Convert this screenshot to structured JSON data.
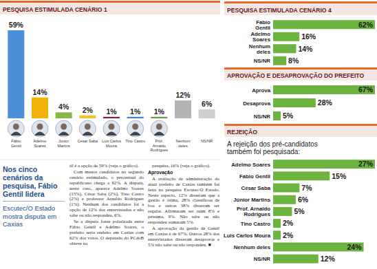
{
  "chart_data": [
    {
      "type": "bar",
      "title": "PESQUISA ESTIMULADA CENÁRIO 1",
      "categories": [
        "Fábio Gentil",
        "Adelmo Soares",
        "Júnior Martins",
        "César Saba",
        "Luis Carlos Moura",
        "Tino Castro",
        "Prof. Arnaldo Rodrigues",
        "Nenhum deles",
        "NS/NR"
      ],
      "values": [
        59,
        14,
        4,
        2,
        1,
        1,
        1,
        12,
        6
      ],
      "value_labels": [
        "59%",
        "14%",
        "4%",
        "2%",
        "1%",
        "1%",
        "1%",
        "12%",
        "6%"
      ],
      "colors": [
        "#4a8fd8",
        "#f2b10a",
        "#86b84a",
        "#f0c52a",
        "#7d2030",
        "#3d7fcf",
        "#5da233",
        "#b4b4b4",
        "#cfcfcf"
      ],
      "ylim": [
        0,
        59
      ],
      "data_labels": true,
      "tick_labels": "x"
    },
    {
      "type": "bar",
      "orientation": "horizontal",
      "title": "PESQUISA ESTIMULADA CENÁRIO 4",
      "categories": [
        "Fábio Gentil",
        "Adelmo Soares",
        "Nenhum deles",
        "NS/NR"
      ],
      "values": [
        62,
        16,
        14,
        8
      ],
      "value_labels": [
        "62%",
        "16%",
        "14%",
        "8%"
      ],
      "color": "#6cb33f",
      "xlim": [
        0,
        62
      ],
      "data_labels": true,
      "tick_labels": "y"
    },
    {
      "type": "bar",
      "orientation": "horizontal",
      "title": "APROVAÇÃO E DESAPROVAÇÃO DO PREFEITO",
      "categories": [
        "Aprova",
        "Desaprova",
        "NS/NR"
      ],
      "values": [
        67,
        28,
        5
      ],
      "value_labels": [
        "67%",
        "28%",
        "5%"
      ],
      "color": "#6cb33f",
      "xlim": [
        0,
        67
      ],
      "data_labels": true,
      "tick_labels": "y"
    },
    {
      "type": "bar",
      "orientation": "horizontal",
      "title": "REJEIÇÃO",
      "subtitle": "A rejeição dos pré-candidatos também foi pesquisada:",
      "categories": [
        "Adelmo Soares",
        "Fábio Gentil",
        "César Saba",
        "Júnior Martins",
        "Prof. Arnaldo Rodrigues",
        "Tino Castro",
        "Luis Carlos Moura",
        "Nenhum deles",
        "NS/NR"
      ],
      "values": [
        27,
        15,
        7,
        6,
        5,
        2,
        2,
        24,
        12
      ],
      "value_labels": [
        "27%",
        "15%",
        "7%",
        "6%",
        "5%",
        "2%",
        "2%",
        "24%",
        "12%"
      ],
      "color": "#6cb33f",
      "xlim": [
        0,
        27
      ],
      "data_labels": true,
      "tick_labels": "y"
    }
  ],
  "article": {
    "headline": "Nos cinco cenários da pesquisa, Fábio Gentil lidera",
    "subheadline": "Escutec/O Estado mostra disputa em Caxias",
    "columns": [
      {
        "paragraphs_before": [
          "til é a opção de 59% (veja o gráfico).",
          "Com menos candidatos no segundo cenário estimulado, o percentual do republicano chega a 62%. A disputa, neste caso, aparece Adelmo Soares (15%), César Saba (2%), Tino Castro (2%) e professor Arnaldo Rodrigues (1%). Nenhum dos candidatos foi a opção de 12% dos entrevistados e não sabe ou não respondeu, 6%.",
          "Se a disputa fosse polarizada entre Fábio Gentil e Adelmo Soares, o prefeito seria reeleito em Caxias com 62% dos votos. O deputado do PCdoB obteve na"
        ],
        "heading": null,
        "paragraphs_after": []
      },
      {
        "paragraphs_before": [
          "pesquisa, 16% (veja o gráfico)."
        ],
        "heading": "Aprovação",
        "paragraphs_after": [
          "A avaliação da administração do atual prefeito de Caxias também foi feita na pesquisa Escutec/O Estado. Neste aspecto, 12% disseram que a gestão é ótima, 28% classificou de boa e outros 38% disseram ser regular. Afirmaram ser ruim 8% e péssima, 9%. Não sabe ou não respondeu somaram 5%.",
          "A aprovação da gestão de Gentil em Caxias é de 67%. Outros 28% dos entrevistados disseram desaprovar e 5% não sabe ou não respondeu. ■"
        ]
      }
    ]
  }
}
